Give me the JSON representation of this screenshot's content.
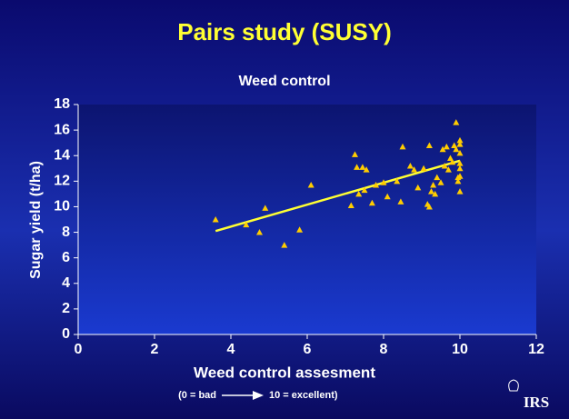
{
  "chart_data": {
    "type": "scatter",
    "slide_title": "Pairs study (SUSY)",
    "title": "Weed control",
    "x_label": "Weed control assesment",
    "x_note_left": "(0 = bad",
    "x_note_right": "10 = excellent)",
    "y_label": "Sugar yield (t/ha)",
    "logo": "IRS",
    "xlim": [
      0,
      12
    ],
    "xticks": [
      0,
      2,
      4,
      6,
      8,
      10,
      12
    ],
    "ylim": [
      0,
      18
    ],
    "yticks": [
      0,
      2,
      4,
      6,
      8,
      10,
      12,
      14,
      16,
      18
    ],
    "color": "#ffcc00",
    "x": [
      3.6,
      4.4,
      4.75,
      4.9,
      5.4,
      5.8,
      6.1,
      7.15,
      7.25,
      7.3,
      7.35,
      7.45,
      7.5,
      7.55,
      7.7,
      7.8,
      8.0,
      8.1,
      8.35,
      8.45,
      8.5,
      8.7,
      8.8,
      8.9,
      9.05,
      9.15,
      9.2,
      9.2,
      9.25,
      9.3,
      9.35,
      9.4,
      9.5,
      9.55,
      9.6,
      9.65,
      9.7,
      9.75,
      9.8,
      9.85,
      9.9,
      9.9,
      9.95,
      10.0,
      10.0,
      10.0,
      10.0,
      10.0,
      10.0,
      10.0,
      9.95
    ],
    "values": [
      9.0,
      8.6,
      8.0,
      9.9,
      7.0,
      8.2,
      11.7,
      10.1,
      14.1,
      13.1,
      11.0,
      13.1,
      11.3,
      12.9,
      10.3,
      11.7,
      11.9,
      10.8,
      12.0,
      10.4,
      14.7,
      13.2,
      12.9,
      11.5,
      13.0,
      10.2,
      10.0,
      14.8,
      11.2,
      11.7,
      11.0,
      12.3,
      11.9,
      14.5,
      13.2,
      14.7,
      12.9,
      13.8,
      13.5,
      14.8,
      16.6,
      14.5,
      12.3,
      15.2,
      14.9,
      14.2,
      13.4,
      13.0,
      12.4,
      11.2,
      12.0
    ],
    "trendline": {
      "x": [
        3.6,
        10.0
      ],
      "values": [
        8.1,
        13.6
      ],
      "color": "#ffff33"
    }
  }
}
